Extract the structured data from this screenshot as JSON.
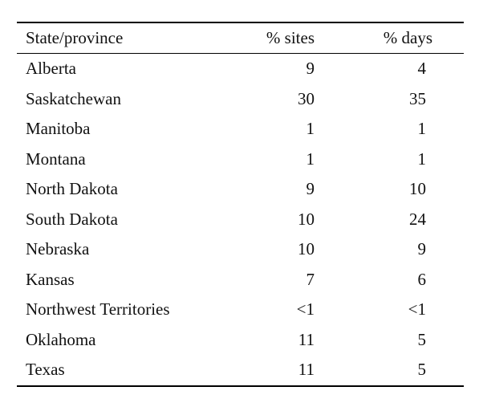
{
  "table": {
    "headers": {
      "state": "State/province",
      "sites": "% sites",
      "days": "% days"
    },
    "rows": [
      {
        "state": "Alberta",
        "sites": "9",
        "days": "4"
      },
      {
        "state": "Saskatchewan",
        "sites": "30",
        "days": "35"
      },
      {
        "state": "Manitoba",
        "sites": "1",
        "days": "1"
      },
      {
        "state": "Montana",
        "sites": "1",
        "days": "1"
      },
      {
        "state": "North Dakota",
        "sites": "9",
        "days": "10"
      },
      {
        "state": "South Dakota",
        "sites": "10",
        "days": "24"
      },
      {
        "state": "Nebraska",
        "sites": "10",
        "days": "9"
      },
      {
        "state": "Kansas",
        "sites": "7",
        "days": "6"
      },
      {
        "state": "Northwest Territories",
        "sites": "<1",
        "days": "<1"
      },
      {
        "state": "Oklahoma",
        "sites": "11",
        "days": "5"
      },
      {
        "state": "Texas",
        "sites": "11",
        "days": "5"
      }
    ]
  }
}
